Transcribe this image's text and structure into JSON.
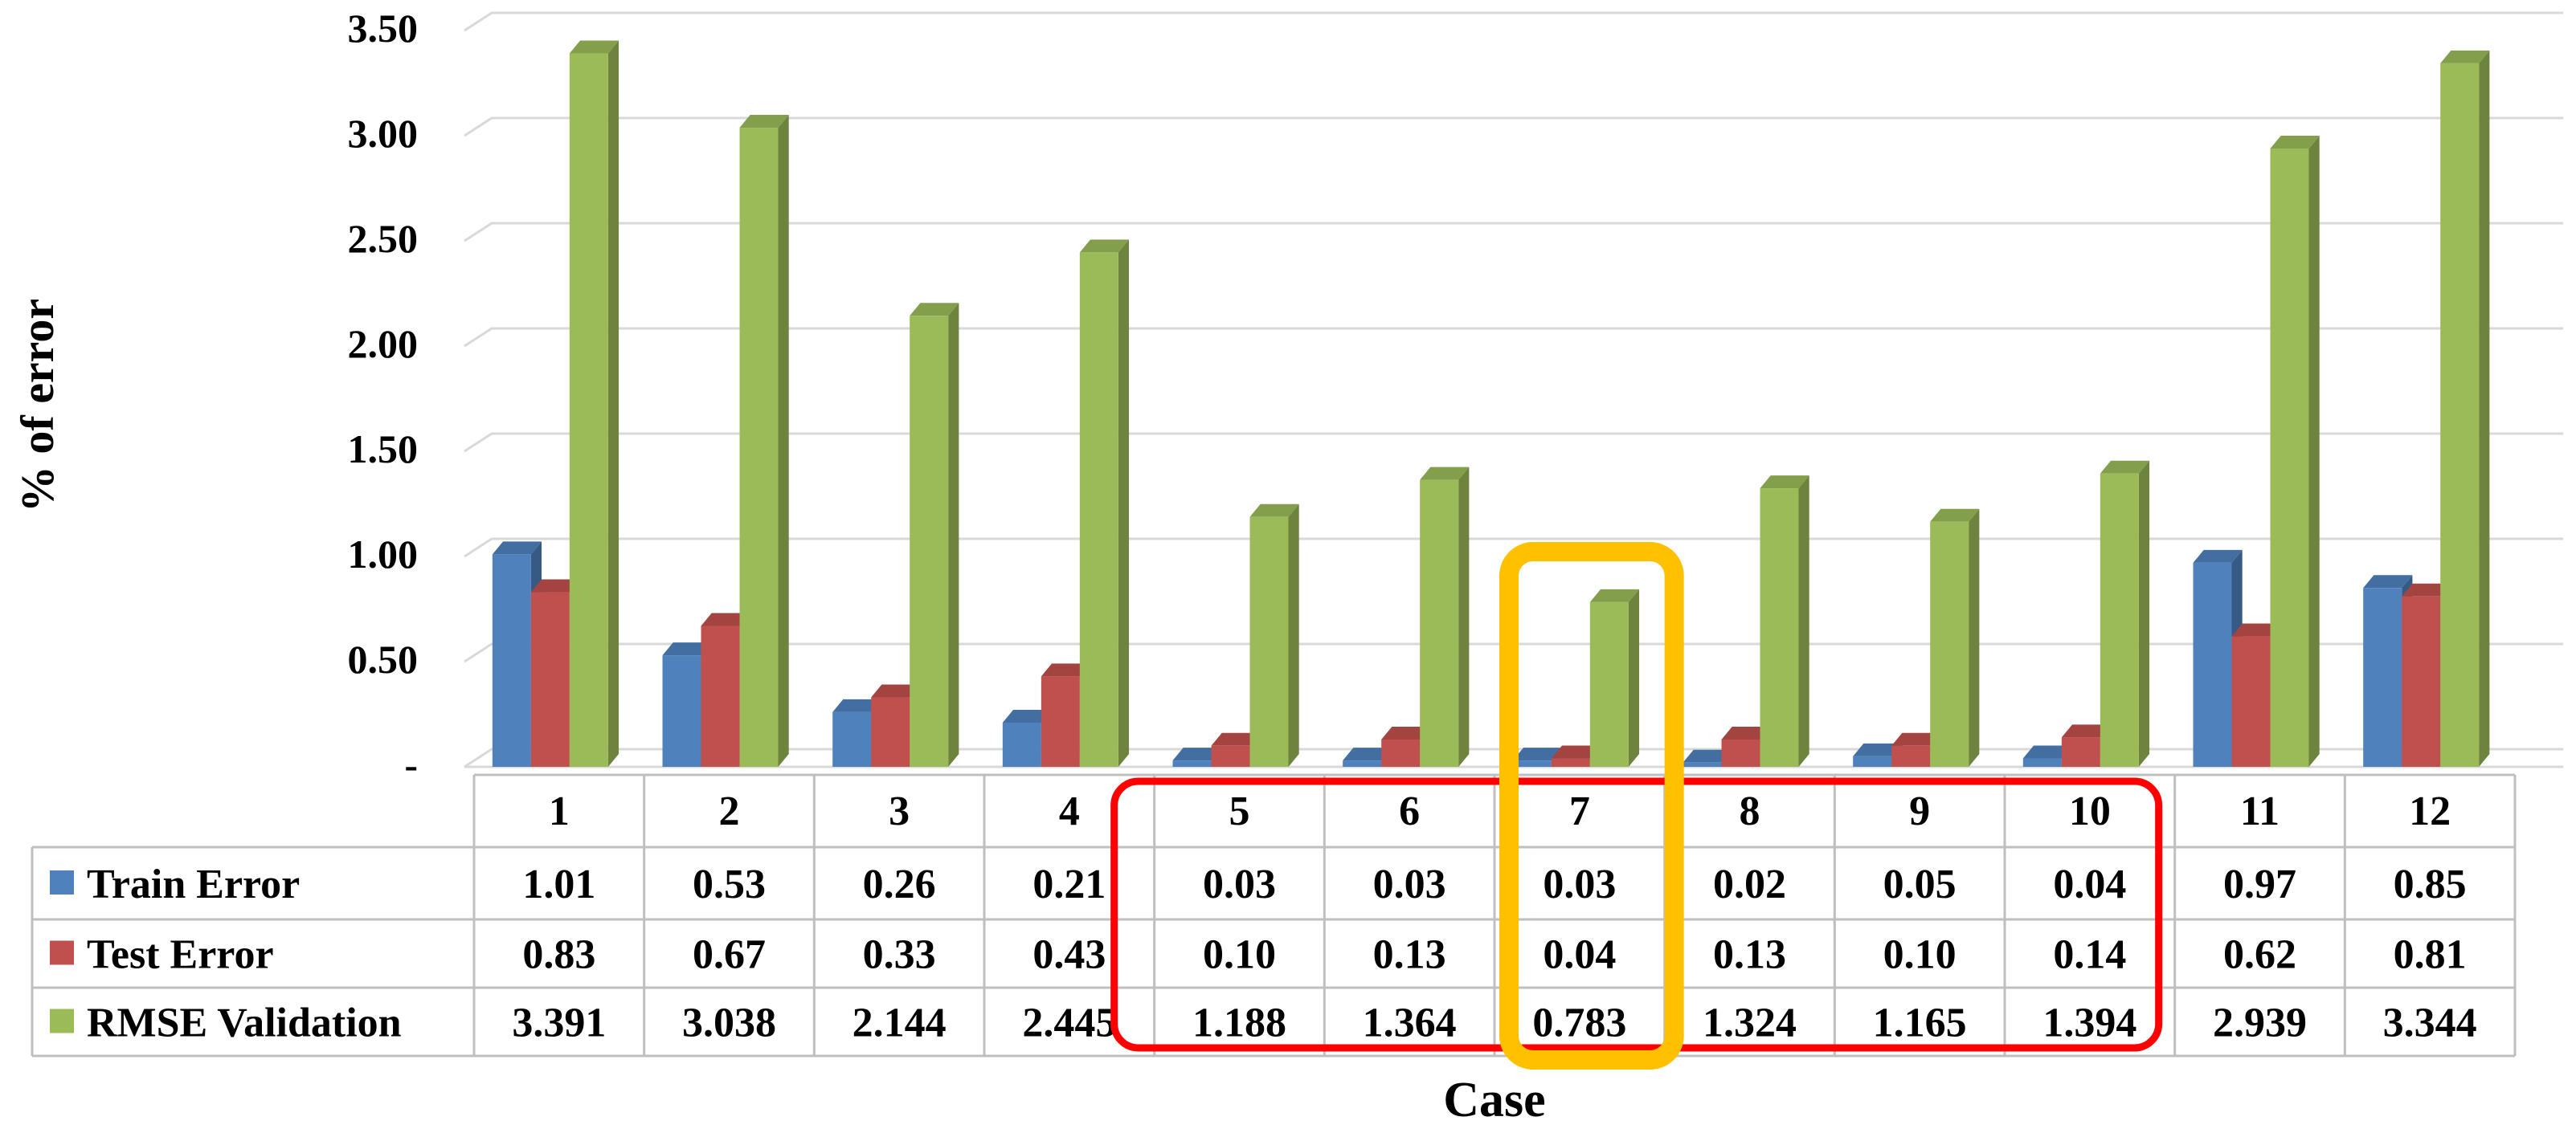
{
  "chart_data": {
    "type": "bar",
    "title": "",
    "xlabel": "Case",
    "ylabel": "% of error",
    "ylim": [
      0,
      3.5
    ],
    "y_ticks": [
      "-",
      "0.50",
      "1.00",
      "1.50",
      "2.00",
      "2.50",
      "3.00",
      "3.50"
    ],
    "y_tick_values": [
      0,
      0.5,
      1.0,
      1.5,
      2.0,
      2.5,
      3.0,
      3.5
    ],
    "grid": true,
    "style": "3d-clustered-column-with-data-table",
    "categories": [
      "1",
      "2",
      "3",
      "4",
      "5",
      "6",
      "7",
      "8",
      "9",
      "10",
      "11",
      "12"
    ],
    "series": [
      {
        "name": "Train Error",
        "color": "#4F81BD",
        "values": [
          1.01,
          0.53,
          0.26,
          0.21,
          0.03,
          0.03,
          0.03,
          0.02,
          0.05,
          0.04,
          0.97,
          0.85
        ],
        "table_labels": [
          "1.01",
          "0.53",
          "0.26",
          "0.21",
          "0.03",
          "0.03",
          "0.03",
          "0.02",
          "0.05",
          "0.04",
          "0.97",
          "0.85"
        ]
      },
      {
        "name": "Test Error",
        "color": "#C0504D",
        "values": [
          0.83,
          0.67,
          0.33,
          0.43,
          0.1,
          0.13,
          0.04,
          0.13,
          0.1,
          0.14,
          0.62,
          0.81
        ],
        "table_labels": [
          "0.83",
          "0.67",
          "0.33",
          "0.43",
          "0.10",
          "0.13",
          "0.04",
          "0.13",
          "0.10",
          "0.14",
          "0.62",
          "0.81"
        ]
      },
      {
        "name": "RMSE Validation",
        "color": "#9BBB59",
        "values": [
          3.391,
          3.038,
          2.144,
          2.445,
          1.188,
          1.364,
          0.783,
          1.324,
          1.165,
          1.394,
          2.939,
          3.344
        ],
        "table_labels": [
          "3.391",
          "3.038",
          "2.144",
          "2.445",
          "1.188",
          "1.364",
          "0.783",
          "1.324",
          "1.165",
          "1.394",
          "2.939",
          "3.344"
        ]
      }
    ],
    "highlights": [
      {
        "categories": [
          "5",
          "10"
        ],
        "color": "#FF0000"
      },
      {
        "categories": [
          "7",
          "7"
        ],
        "color": "#FFC000"
      }
    ]
  }
}
